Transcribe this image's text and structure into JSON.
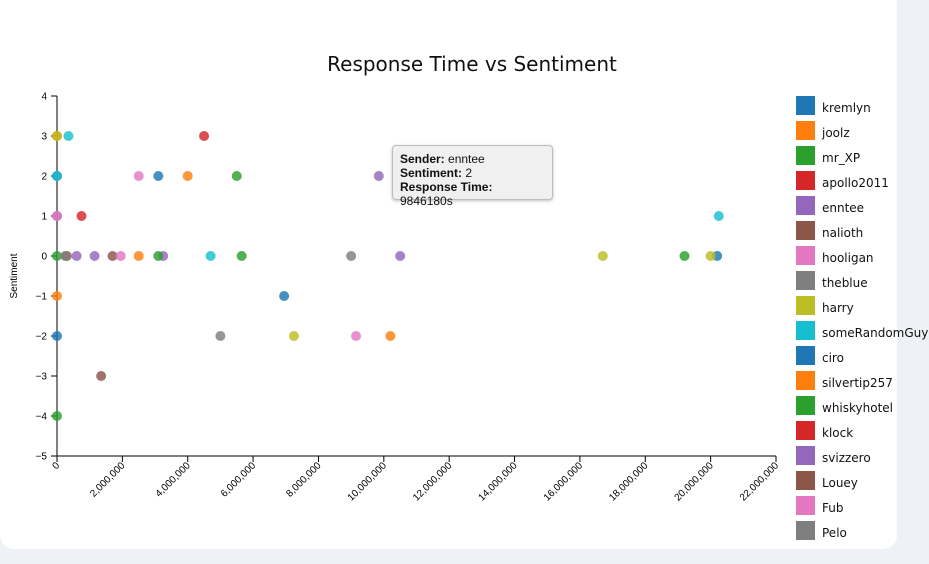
{
  "chart_data": {
    "type": "scatter",
    "title": "Response Time vs Sentiment",
    "xlabel": "",
    "ylabel": "Sentiment",
    "xlim": [
      0,
      22000000
    ],
    "ylim": [
      -5,
      4
    ],
    "x_ticks": [
      0,
      2000000,
      4000000,
      6000000,
      8000000,
      10000000,
      12000000,
      14000000,
      16000000,
      18000000,
      20000000,
      22000000
    ],
    "x_tick_labels": [
      "0",
      "2,000,000",
      "4,000,000",
      "6,000,000",
      "8,000,000",
      "10,000,000",
      "12,000,000",
      "14,000,000",
      "16,000,000",
      "18,000,000",
      "20,000,000",
      "22,000,000"
    ],
    "y_ticks": [
      -5,
      -4,
      -3,
      -2,
      -1,
      0,
      1,
      2,
      3,
      4
    ],
    "y_tick_labels": [
      "−5",
      "−4",
      "−3",
      "−2",
      "−1",
      "0",
      "1",
      "2",
      "3",
      "4"
    ],
    "grid": false,
    "legend_position": "right",
    "series": [
      {
        "name": "kremlyn",
        "color": "#1f77b4",
        "points": [
          [
            0,
            2
          ],
          [
            3100000,
            2
          ],
          [
            6950000,
            -1
          ],
          [
            0,
            -2
          ],
          [
            20200000,
            0
          ]
        ]
      },
      {
        "name": "joolz",
        "color": "#ff7f0e",
        "points": [
          [
            0,
            -1
          ],
          [
            2500000,
            0
          ],
          [
            4000000,
            2
          ],
          [
            10200000,
            -2
          ],
          [
            0,
            3
          ]
        ]
      },
      {
        "name": "mr_XP",
        "color": "#2ca02c",
        "points": [
          [
            0,
            0
          ],
          [
            5500000,
            2
          ],
          [
            5650000,
            0
          ],
          [
            19200000,
            0
          ],
          [
            0,
            -4
          ]
        ]
      },
      {
        "name": "apollo2011",
        "color": "#d62728",
        "points": [
          [
            750000,
            1
          ],
          [
            4500000,
            3
          ]
        ]
      },
      {
        "name": "enntee",
        "color": "#9467bd",
        "points": [
          [
            600000,
            0
          ],
          [
            1150000,
            0
          ],
          [
            3250000,
            0
          ],
          [
            9846180,
            2
          ],
          [
            10500000,
            0
          ],
          [
            0,
            1
          ]
        ]
      },
      {
        "name": "nalioth",
        "color": "#8c564b",
        "points": [
          [
            300000,
            0
          ],
          [
            1700000,
            0
          ],
          [
            1350000,
            -3
          ]
        ]
      },
      {
        "name": "hooligan",
        "color": "#e377c2",
        "points": [
          [
            1950000,
            0
          ],
          [
            2500000,
            2
          ],
          [
            9150000,
            -2
          ],
          [
            0,
            1
          ]
        ]
      },
      {
        "name": "theblue",
        "color": "#7f7f7f",
        "points": [
          [
            250000,
            0
          ],
          [
            5000000,
            -2
          ],
          [
            9000000,
            0
          ]
        ]
      },
      {
        "name": "harry",
        "color": "#bcbd22",
        "points": [
          [
            0,
            3
          ],
          [
            7250000,
            -2
          ],
          [
            16700000,
            0
          ],
          [
            20000000,
            0
          ]
        ]
      },
      {
        "name": "someRandomGuy",
        "color": "#17becf",
        "points": [
          [
            350000,
            3
          ],
          [
            4700000,
            0
          ],
          [
            20250000,
            1
          ],
          [
            0,
            2
          ]
        ]
      },
      {
        "name": "ciro",
        "color": "#1f77b4",
        "points": []
      },
      {
        "name": "silvertip257",
        "color": "#ff7f0e",
        "points": []
      },
      {
        "name": "whiskyhotel",
        "color": "#2ca02c",
        "points": [
          [
            3100000,
            0
          ]
        ]
      },
      {
        "name": "klock",
        "color": "#d62728",
        "points": []
      },
      {
        "name": "svizzero",
        "color": "#9467bd",
        "points": []
      },
      {
        "name": "Louey",
        "color": "#8c564b",
        "points": []
      },
      {
        "name": "Fub",
        "color": "#e377c2",
        "points": []
      },
      {
        "name": "Pelo",
        "color": "#7f7f7f",
        "points": []
      }
    ],
    "tooltip": {
      "sender_label": "Sender:",
      "sender_value": "enntee",
      "sentiment_label": "Sentiment:",
      "sentiment_value": "2",
      "response_label": "Response Time:",
      "response_value": "9846180s"
    }
  }
}
